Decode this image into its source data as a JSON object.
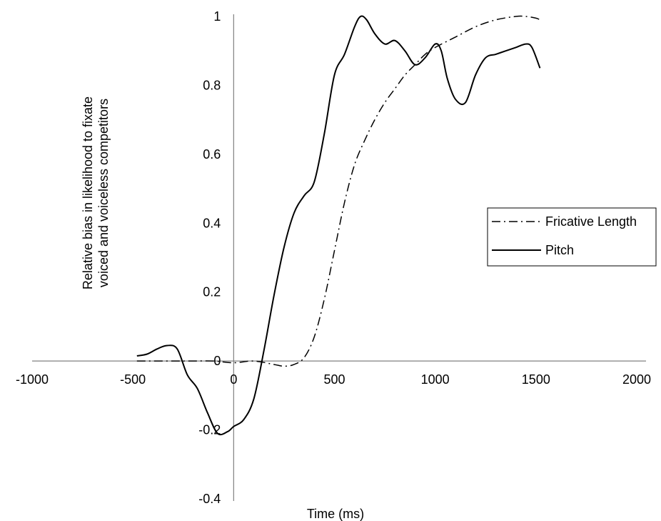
{
  "chart_data": {
    "type": "line",
    "xlabel": "Time (ms)",
    "ylabel_lines": [
      "Relative bias in likelihood to fixate",
      "voiced and voiceless competitors"
    ],
    "xlim": [
      -1000,
      2000
    ],
    "ylim": [
      -0.4,
      1
    ],
    "x_ticks": [
      -1000,
      -500,
      0,
      500,
      1000,
      1500,
      2000
    ],
    "y_ticks": [
      -0.4,
      -0.2,
      0,
      0.2,
      0.4,
      0.6,
      0.8,
      1
    ],
    "x_tick_labels": [
      "-1000",
      "-500",
      "0",
      "500",
      "1000",
      "1500",
      "2000"
    ],
    "y_tick_labels": [
      "-0.4",
      "-0.2",
      "0",
      "0.2",
      "0.4",
      "0.6",
      "0.8",
      "1"
    ],
    "grid": false,
    "legend_position": "right",
    "series": [
      {
        "name": "Fricative Length",
        "style": "dash-dot",
        "color": "#000000",
        "x": [
          -480,
          -400,
          -300,
          -200,
          -100,
          0,
          100,
          200,
          250,
          300,
          350,
          400,
          450,
          500,
          550,
          600,
          650,
          700,
          750,
          800,
          850,
          900,
          950,
          1000,
          1100,
          1200,
          1300,
          1400,
          1450,
          1500,
          1520
        ],
        "y": [
          0.0,
          0.0,
          0.0,
          0.0,
          0.0,
          -0.005,
          0.0,
          -0.01,
          -0.015,
          -0.01,
          0.01,
          0.07,
          0.18,
          0.32,
          0.46,
          0.57,
          0.64,
          0.7,
          0.75,
          0.79,
          0.83,
          0.86,
          0.89,
          0.91,
          0.94,
          0.97,
          0.99,
          1.0,
          1.0,
          0.995,
          0.99
        ]
      },
      {
        "name": "Pitch",
        "style": "solid",
        "color": "#000000",
        "x": [
          -480,
          -430,
          -380,
          -330,
          -280,
          -230,
          -180,
          -130,
          -80,
          -30,
          0,
          50,
          100,
          150,
          200,
          250,
          300,
          350,
          400,
          450,
          500,
          550,
          600,
          630,
          660,
          700,
          750,
          800,
          850,
          900,
          950,
          1000,
          1030,
          1060,
          1100,
          1150,
          1200,
          1250,
          1300,
          1350,
          1400,
          1450,
          1480,
          1520
        ],
        "y": [
          0.015,
          0.02,
          0.035,
          0.045,
          0.035,
          -0.04,
          -0.08,
          -0.15,
          -0.21,
          -0.205,
          -0.19,
          -0.17,
          -0.11,
          0.03,
          0.19,
          0.33,
          0.43,
          0.48,
          0.52,
          0.66,
          0.83,
          0.89,
          0.97,
          1.0,
          0.99,
          0.95,
          0.92,
          0.93,
          0.9,
          0.86,
          0.88,
          0.92,
          0.9,
          0.82,
          0.76,
          0.75,
          0.83,
          0.88,
          0.89,
          0.9,
          0.91,
          0.92,
          0.91,
          0.85
        ]
      }
    ]
  }
}
